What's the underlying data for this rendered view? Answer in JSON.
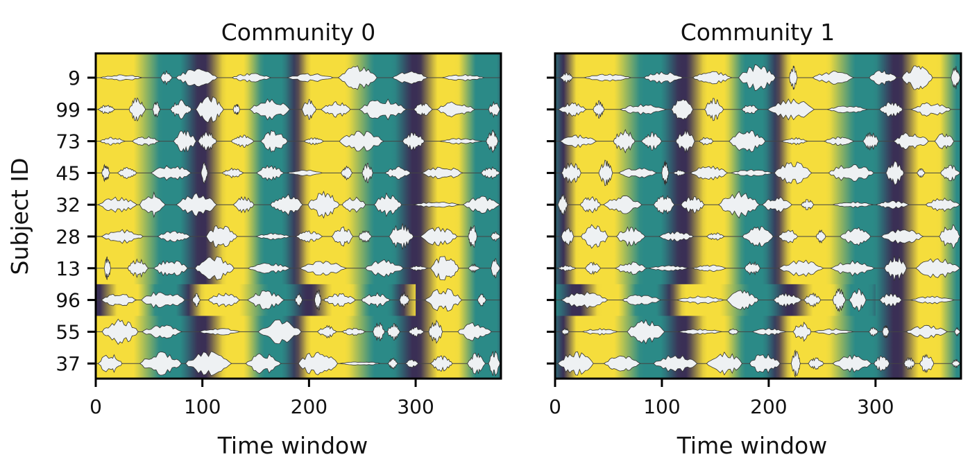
{
  "chart_data": [
    {
      "type": "heatmap",
      "title": "Community 0",
      "xlabel": "Time window",
      "ylabel": "Subject ID",
      "xlim": [
        0,
        380
      ],
      "xticks": [
        0,
        100,
        200,
        300
      ],
      "subjects": [
        "9",
        "99",
        "73",
        "45",
        "32",
        "28",
        "13",
        "96",
        "55",
        "37"
      ],
      "background_phase_period": 200,
      "background_phase_yellow_center": 0,
      "highlighted_row": "96",
      "highlighted_row_phase_shift_window": [
        0,
        300
      ],
      "overlay": "per-subject amplitude envelopes (light grey violins) along each row",
      "grid": false
    },
    {
      "type": "heatmap",
      "title": "Community 1",
      "xlabel": "Time window",
      "ylabel": "",
      "xlim": [
        0,
        380
      ],
      "xticks": [
        0,
        100,
        200,
        300
      ],
      "subjects": [
        "9",
        "99",
        "73",
        "45",
        "32",
        "28",
        "13",
        "96",
        "55",
        "37"
      ],
      "background_phase_period": 200,
      "background_phase_yellow_center": 20,
      "highlighted_row": "96",
      "highlighted_row_phase_shift_window": [
        0,
        300
      ],
      "overlay": "per-subject amplitude envelopes (light grey violins) along each row",
      "grid": false
    }
  ],
  "colors": {
    "yellow": "#f5dd3c",
    "teal": "#2b8a87",
    "dark": "#3a2f55",
    "envelope_fill": "#eef1f3",
    "envelope_stroke": "#333333"
  }
}
